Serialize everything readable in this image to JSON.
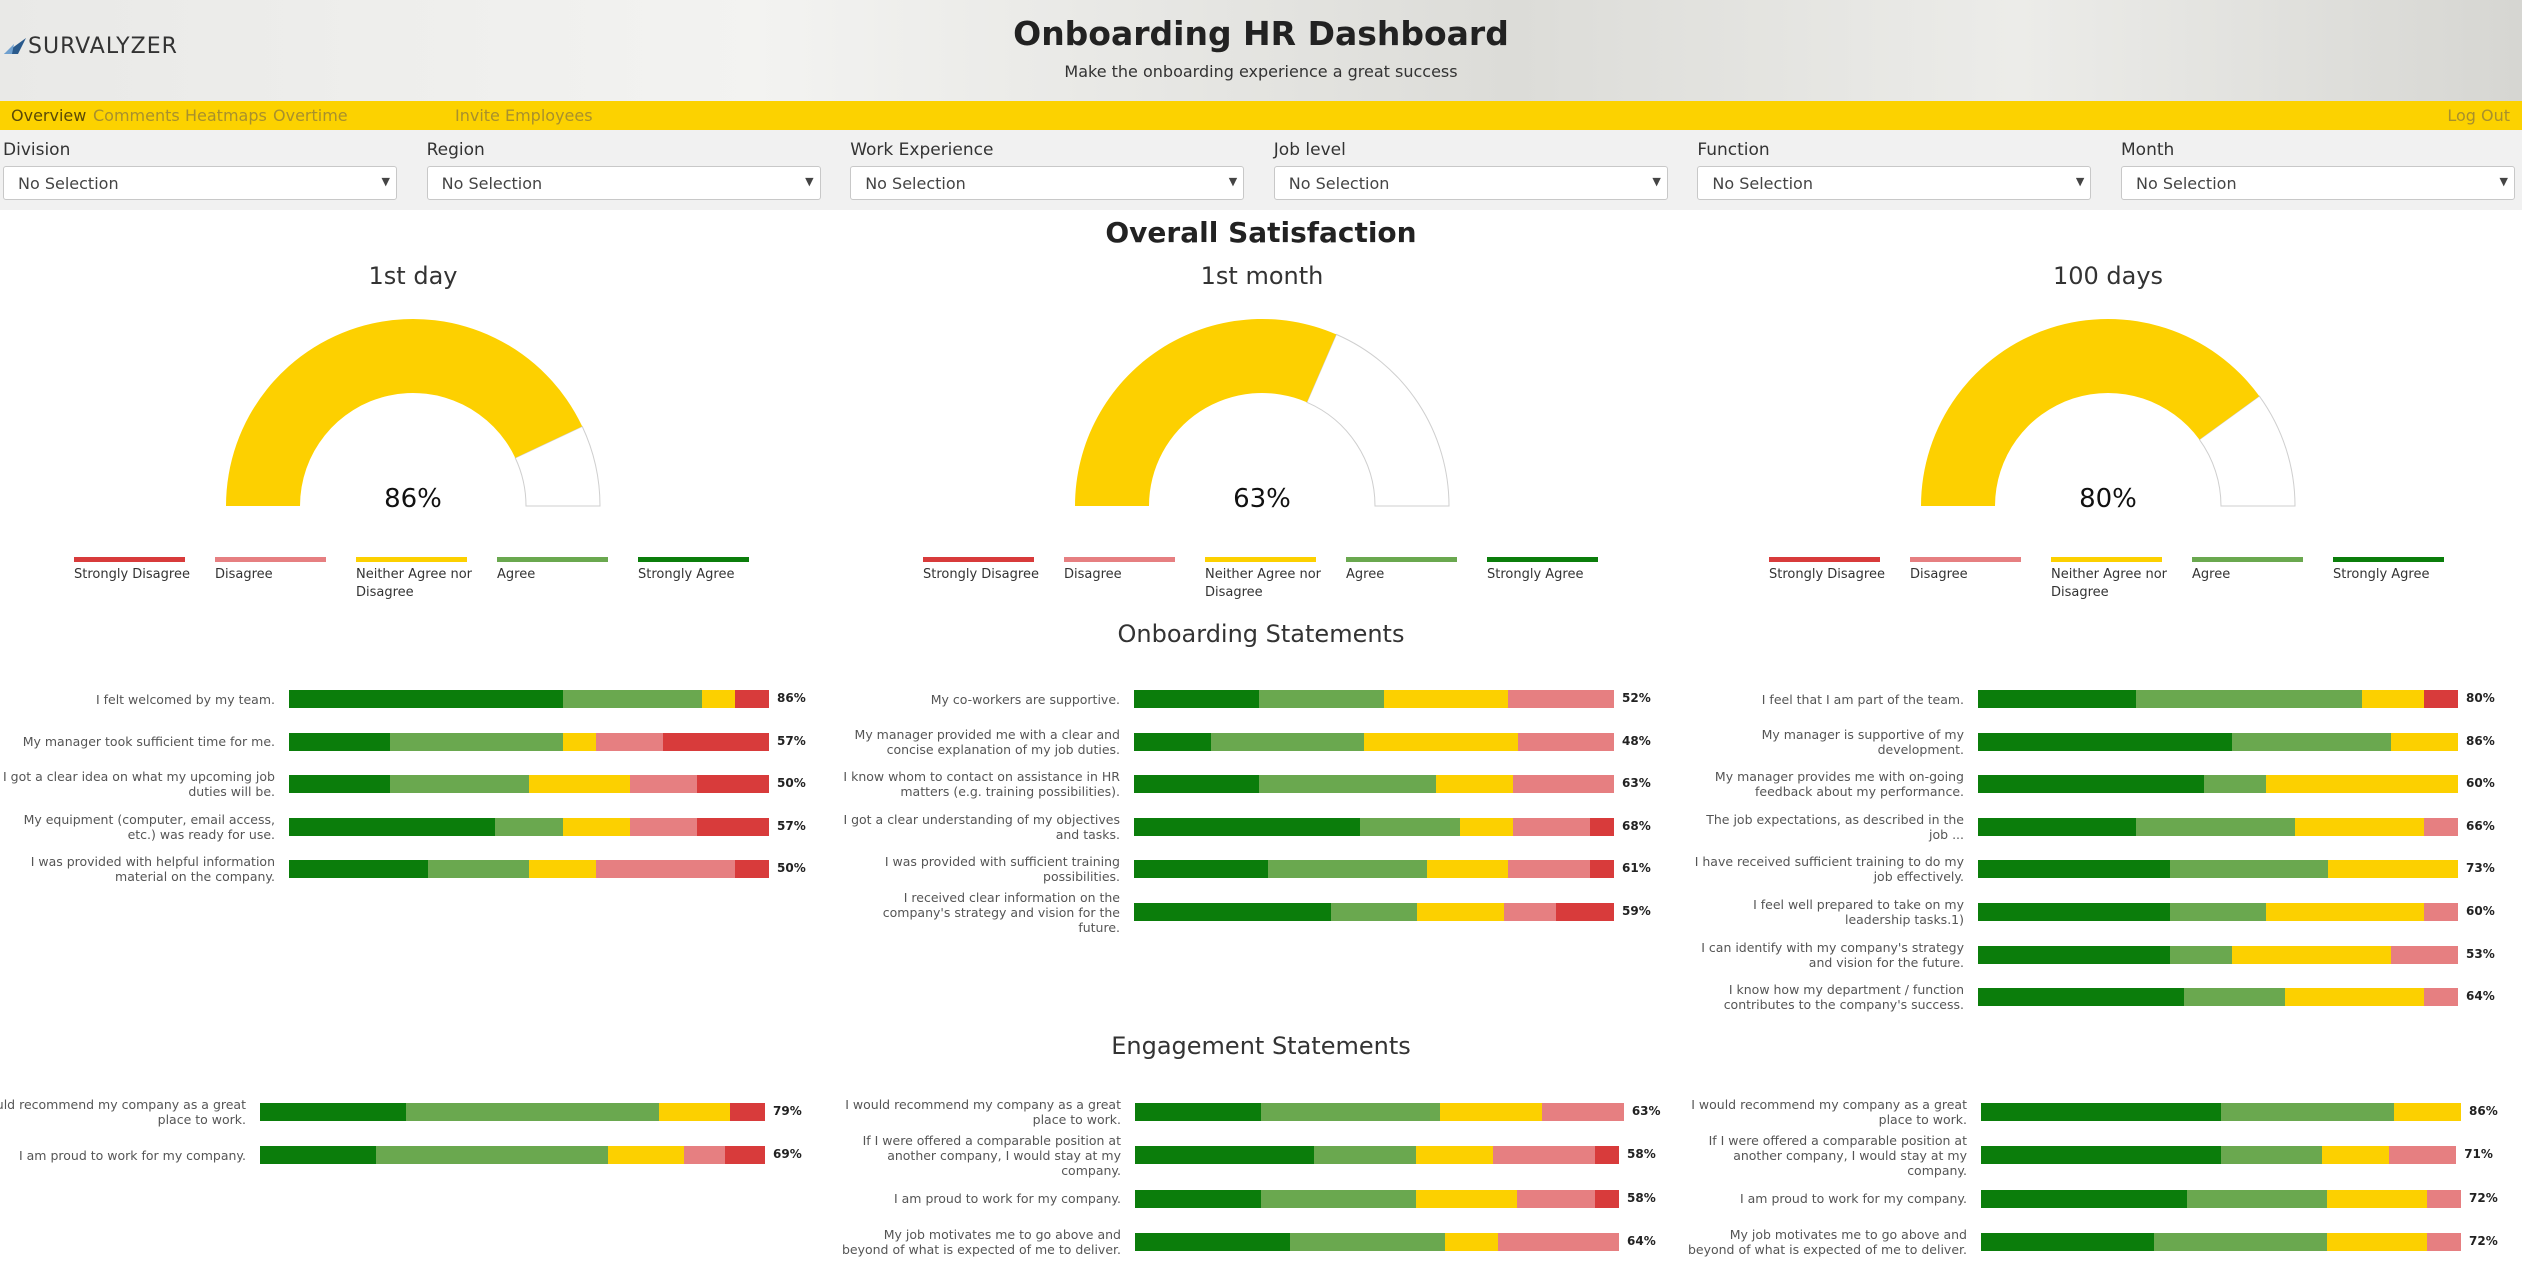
{
  "header": {
    "logo": "SURVALYZER",
    "title": "Onboarding HR Dashboard",
    "subtitle": "Make the onboarding experience a great success"
  },
  "nav": {
    "tabs": [
      "Overview",
      "Comments",
      "Heatmaps",
      "Overtime",
      "Invite Employees"
    ],
    "logout": "Log Out"
  },
  "filters": [
    {
      "label": "Division",
      "value": "No Selection"
    },
    {
      "label": "Region",
      "value": "No Selection"
    },
    {
      "label": "Work Experience",
      "value": "No Selection"
    },
    {
      "label": "Job level",
      "value": "No Selection"
    },
    {
      "label": "Function",
      "value": "No Selection"
    },
    {
      "label": "Month",
      "value": "No Selection"
    }
  ],
  "legend": [
    {
      "name": "Strongly Disagree",
      "color": "#d83b3b"
    },
    {
      "name": "Disagree",
      "color": "#e67f81"
    },
    {
      "name": "Neither Agree nor Disagree",
      "color": "#fcd000"
    },
    {
      "name": "Agree",
      "color": "#6aa84f"
    },
    {
      "name": "Strongly Agree",
      "color": "#0b7d0b"
    }
  ],
  "overall": {
    "title": "Overall Satisfaction",
    "gauge_color": "#fdd000",
    "gauges": [
      {
        "type": "gauge",
        "title": "1st day",
        "value": 86,
        "value_label": "86%"
      },
      {
        "type": "gauge",
        "title": "1st month",
        "value": 63,
        "value_label": "63%"
      },
      {
        "type": "gauge",
        "title": "100 days",
        "value": 80,
        "value_label": "80%"
      }
    ]
  },
  "onboarding": {
    "title": "Onboarding Statements",
    "charts": [
      {
        "type": "stacked-bar",
        "rows": [
          {
            "label": "I felt welcomed by my team.",
            "values": [
              7,
              0,
              7,
              29,
              57
            ],
            "value_label": "86%"
          },
          {
            "label": "My manager took sufficient time for me.",
            "values": [
              22,
              14,
              7,
              36,
              21
            ],
            "value_label": "57%"
          },
          {
            "label": "I got a clear idea on what my upcoming job duties will be.",
            "values": [
              15,
              14,
              21,
              29,
              21
            ],
            "value_label": "50%"
          },
          {
            "label": "My equipment (computer, email access, etc.) was ready for use.",
            "values": [
              15,
              14,
              14,
              14,
              43
            ],
            "value_label": "57%"
          },
          {
            "label": "I was provided with helpful information material on the company.",
            "values": [
              7,
              29,
              14,
              21,
              29
            ],
            "value_label": "50%"
          }
        ]
      },
      {
        "type": "stacked-bar",
        "rows": [
          {
            "label": "My co-workers are supportive.",
            "values": [
              0,
              22,
              26,
              26,
              26
            ],
            "value_label": "52%"
          },
          {
            "label": "My manager provided me with a clear and concise explanation of my job duties.",
            "values": [
              0,
              20,
              32,
              32,
              16
            ],
            "value_label": "48%"
          },
          {
            "label": "I know whom to contact on assistance in HR matters (e.g. training possibilities).",
            "values": [
              0,
              21,
              16,
              37,
              26
            ],
            "value_label": "63%"
          },
          {
            "label": "I got a clear understanding of my objectives and tasks.",
            "values": [
              5,
              16,
              11,
              21,
              47
            ],
            "value_label": "68%"
          },
          {
            "label": "I was provided with sufficient training possibilities.",
            "values": [
              5,
              17,
              17,
              33,
              28
            ],
            "value_label": "61%"
          },
          {
            "label": "I received clear information on the company's strategy and vision for the future.",
            "values": [
              12,
              11,
              18,
              18,
              41
            ],
            "value_label": "59%"
          }
        ]
      },
      {
        "type": "stacked-bar",
        "rows": [
          {
            "label": "I feel that I am part of the team.",
            "values": [
              7,
              0,
              13,
              47,
              33
            ],
            "value_label": "80%"
          },
          {
            "label": "My manager is supportive of my development.",
            "values": [
              0,
              0,
              14,
              33,
              53
            ],
            "value_label": "86%"
          },
          {
            "label": "My manager provides me with on-going feedback about my performance.",
            "values": [
              0,
              0,
              40,
              13,
              47
            ],
            "value_label": "60%"
          },
          {
            "label": "The job expectations, as described in the job ...",
            "values": [
              0,
              7,
              27,
              33,
              33
            ],
            "value_label": "66%"
          },
          {
            "label": "I have received sufficient training to do my job effectively.",
            "values": [
              0,
              0,
              27,
              33,
              40
            ],
            "value_label": "73%"
          },
          {
            "label": "I feel well prepared to take on my leadership tasks.1)",
            "values": [
              0,
              7,
              33,
              20,
              40
            ],
            "value_label": "60%"
          },
          {
            "label": "I can identify with my company's strategy and vision for the future.",
            "values": [
              0,
              14,
              33,
              13,
              40
            ],
            "value_label": "53%"
          },
          {
            "label": "I know how my department / function contributes to the company's success.",
            "values": [
              0,
              7,
              29,
              21,
              43
            ],
            "value_label": "64%"
          }
        ]
      }
    ]
  },
  "engagement": {
    "title": "Engagement Statements",
    "charts": [
      {
        "type": "stacked-bar",
        "rows": [
          {
            "label": "I would recommend my company as a great place to work.",
            "values": [
              7,
              0,
              14,
              50,
              29
            ],
            "value_label": "79%"
          },
          {
            "label": "I am proud to work for my company.",
            "values": [
              8,
              8,
              15,
              46,
              23
            ],
            "value_label": "69%"
          }
        ]
      },
      {
        "type": "stacked-bar",
        "rows": [
          {
            "label": "I would recommend my company as a great place to work.",
            "values": [
              0,
              17,
              21,
              37,
              26
            ],
            "value_label": "63%"
          },
          {
            "label": "If I were offered a comparable position at another company, I would stay at my company.",
            "values": [
              5,
              21,
              16,
              21,
              37
            ],
            "value_label": "58%"
          },
          {
            "label": "I am proud to work for my company.",
            "values": [
              5,
              16,
              21,
              32,
              26
            ],
            "value_label": "58%"
          },
          {
            "label": "My job motivates me to go above and beyond of what is expected of me to deliver.",
            "values": [
              0,
              25,
              11,
              32,
              32
            ],
            "value_label": "64%"
          }
        ]
      },
      {
        "type": "stacked-bar",
        "rows": [
          {
            "label": "I would recommend my company as a great place to work.",
            "values": [
              0,
              0,
              14,
              36,
              50
            ],
            "value_label": "86%"
          },
          {
            "label": "If I were offered a comparable position at another company, I would stay at my company.",
            "values": [
              0,
              14,
              14,
              21,
              50
            ],
            "value_label": "71%"
          },
          {
            "label": "I am proud to work for my company.",
            "values": [
              0,
              7,
              21,
              29,
              43
            ],
            "value_label": "72%"
          },
          {
            "label": "My job motivates me to go above and beyond of what is expected of me to deliver.",
            "values": [
              0,
              7,
              21,
              36,
              36
            ],
            "value_label": "72%"
          }
        ]
      }
    ]
  }
}
